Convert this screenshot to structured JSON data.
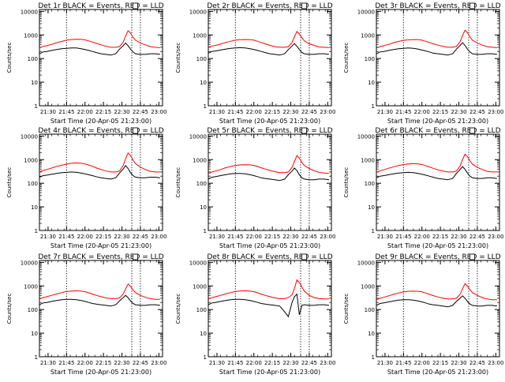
{
  "chart_data": [
    {
      "type": "line",
      "title": "Det 1r BLACK = Events, RED = LLD",
      "xlabel": "Start Time (20-Apr-05 21:23:00)",
      "ylabel": "Counts/sec",
      "x": [
        0,
        3,
        6,
        10,
        14,
        18,
        22,
        26,
        30,
        34,
        37,
        40,
        43,
        46,
        50,
        54,
        58,
        62,
        65,
        68,
        70,
        72,
        74,
        76,
        78,
        82,
        86,
        90,
        94,
        98
      ],
      "series": [
        {
          "values": [
            280,
            330,
            350,
            400,
            470,
            530,
            600,
            640,
            660,
            650,
            620,
            560,
            500,
            440,
            380,
            330,
            300,
            300,
            320,
            500,
            900,
            1500,
            1200,
            800,
            600,
            450,
            380,
            320,
            300,
            290
          ]
        },
        {
          "values": [
            160,
            190,
            200,
            220,
            240,
            260,
            270,
            280,
            280,
            260,
            240,
            220,
            200,
            180,
            160,
            150,
            140,
            160,
            250,
            350,
            450,
            350,
            250,
            190,
            160,
            150,
            150,
            160,
            160,
            150
          ]
        }
      ]
    },
    {
      "type": "line",
      "title": "Det 2r BLACK = Events, RED = LLD",
      "xlabel": "Start Time (20-Apr-05 21:23:00)",
      "ylabel": "Counts/sec",
      "x": [
        0,
        3,
        6,
        10,
        14,
        18,
        22,
        26,
        30,
        34,
        37,
        40,
        43,
        46,
        50,
        54,
        58,
        62,
        65,
        68,
        70,
        72,
        74,
        76,
        78,
        82,
        86,
        90,
        94,
        98
      ],
      "series": [
        {
          "values": [
            300,
            340,
            360,
            410,
            480,
            540,
            600,
            630,
            640,
            630,
            600,
            540,
            480,
            420,
            360,
            320,
            300,
            300,
            320,
            480,
            850,
            1400,
            1100,
            750,
            560,
            420,
            360,
            310,
            300,
            290
          ]
        },
        {
          "values": [
            170,
            200,
            210,
            230,
            250,
            270,
            280,
            290,
            280,
            260,
            240,
            220,
            200,
            180,
            160,
            150,
            140,
            160,
            240,
            340,
            430,
            330,
            240,
            180,
            160,
            150,
            150,
            160,
            160,
            150
          ]
        }
      ]
    },
    {
      "type": "line",
      "title": "Det 3r BLACK = Events, RED = LLD",
      "xlabel": "Start Time (20-Apr-05 21:23:00)",
      "ylabel": "Counts/sec",
      "x": [
        0,
        3,
        6,
        10,
        14,
        18,
        22,
        26,
        30,
        34,
        37,
        40,
        43,
        46,
        50,
        54,
        58,
        62,
        65,
        68,
        70,
        72,
        74,
        76,
        78,
        82,
        86,
        90,
        94,
        98
      ],
      "series": [
        {
          "values": [
            280,
            320,
            350,
            400,
            470,
            530,
            590,
            620,
            640,
            630,
            600,
            540,
            480,
            420,
            370,
            330,
            300,
            300,
            330,
            520,
            950,
            1600,
            1250,
            820,
            600,
            450,
            370,
            320,
            300,
            290
          ]
        },
        {
          "values": [
            160,
            190,
            200,
            220,
            240,
            260,
            270,
            280,
            270,
            250,
            230,
            210,
            190,
            170,
            160,
            150,
            140,
            160,
            250,
            360,
            470,
            360,
            250,
            190,
            160,
            150,
            150,
            160,
            160,
            150
          ]
        }
      ]
    },
    {
      "type": "line",
      "title": "Det 4r BLACK = Events, RED = LLD",
      "xlabel": "Start Time (20-Apr-05 21:23:00)",
      "ylabel": "Counts/sec",
      "x": [
        0,
        3,
        6,
        10,
        14,
        18,
        22,
        26,
        30,
        34,
        37,
        40,
        43,
        46,
        50,
        54,
        58,
        62,
        65,
        68,
        70,
        72,
        74,
        76,
        78,
        82,
        86,
        90,
        94,
        98
      ],
      "series": [
        {
          "values": [
            300,
            350,
            380,
            440,
            520,
            580,
            650,
            700,
            720,
            700,
            660,
            590,
            520,
            450,
            380,
            330,
            300,
            300,
            330,
            560,
            1100,
            1900,
            1500,
            950,
            680,
            480,
            380,
            320,
            300,
            300
          ]
        },
        {
          "values": [
            180,
            210,
            220,
            240,
            260,
            280,
            290,
            300,
            290,
            270,
            250,
            230,
            210,
            190,
            170,
            160,
            150,
            170,
            270,
            400,
            560,
            420,
            280,
            210,
            180,
            170,
            170,
            180,
            180,
            170
          ]
        }
      ]
    },
    {
      "type": "line",
      "title": "Det 5r BLACK = Events, RED = LLD",
      "xlabel": "Start Time (20-Apr-05 21:23:00)",
      "ylabel": "Counts/sec",
      "x": [
        0,
        3,
        6,
        10,
        14,
        18,
        22,
        26,
        30,
        34,
        37,
        40,
        43,
        46,
        50,
        54,
        58,
        62,
        65,
        68,
        70,
        72,
        74,
        76,
        78,
        82,
        86,
        90,
        94,
        98
      ],
      "series": [
        {
          "values": [
            260,
            300,
            330,
            380,
            450,
            510,
            570,
            600,
            610,
            600,
            570,
            510,
            450,
            400,
            350,
            310,
            280,
            280,
            300,
            470,
            850,
            1500,
            1150,
            760,
            560,
            420,
            340,
            290,
            270,
            260
          ]
        },
        {
          "values": [
            150,
            180,
            190,
            210,
            230,
            250,
            260,
            260,
            250,
            230,
            210,
            190,
            170,
            160,
            150,
            140,
            130,
            150,
            230,
            330,
            440,
            340,
            230,
            170,
            150,
            140,
            140,
            150,
            150,
            140
          ]
        }
      ]
    },
    {
      "type": "line",
      "title": "Det 6r BLACK = Events, RED = LLD",
      "xlabel": "Start Time (20-Apr-05 21:23:00)",
      "ylabel": "Counts/sec",
      "x": [
        0,
        3,
        6,
        10,
        14,
        18,
        22,
        26,
        30,
        34,
        37,
        40,
        43,
        46,
        50,
        54,
        58,
        62,
        65,
        68,
        70,
        72,
        74,
        76,
        78,
        82,
        86,
        90,
        94,
        98
      ],
      "series": [
        {
          "values": [
            290,
            340,
            370,
            430,
            500,
            560,
            620,
            660,
            680,
            660,
            620,
            560,
            490,
            430,
            370,
            330,
            300,
            300,
            330,
            540,
            1000,
            1700,
            1350,
            880,
            640,
            470,
            380,
            320,
            300,
            300
          ]
        },
        {
          "values": [
            170,
            200,
            210,
            230,
            250,
            270,
            280,
            290,
            280,
            260,
            240,
            220,
            200,
            180,
            160,
            150,
            140,
            160,
            260,
            380,
            510,
            390,
            270,
            200,
            170,
            160,
            160,
            170,
            170,
            160
          ]
        }
      ]
    },
    {
      "type": "line",
      "title": "Det 7r BLACK = Events, RED = LLD",
      "xlabel": "Start Time (20-Apr-05 21:23:00)",
      "ylabel": "Counts/sec",
      "x": [
        0,
        3,
        6,
        10,
        14,
        18,
        22,
        26,
        30,
        34,
        37,
        40,
        43,
        46,
        50,
        54,
        58,
        62,
        65,
        68,
        70,
        72,
        74,
        76,
        78,
        82,
        86,
        90,
        94,
        98
      ],
      "series": [
        {
          "values": [
            280,
            320,
            350,
            400,
            460,
            520,
            580,
            610,
            620,
            600,
            570,
            510,
            450,
            400,
            350,
            310,
            290,
            290,
            310,
            450,
            750,
            1200,
            950,
            680,
            520,
            400,
            330,
            290,
            270,
            270
          ]
        },
        {
          "values": [
            160,
            190,
            200,
            220,
            240,
            260,
            270,
            270,
            260,
            240,
            220,
            200,
            180,
            170,
            160,
            150,
            140,
            160,
            230,
            320,
            400,
            320,
            230,
            180,
            160,
            150,
            150,
            160,
            160,
            150
          ]
        }
      ]
    },
    {
      "type": "line",
      "title": "Det 8r BLACK = Events, RED = LLD",
      "xlabel": "Start Time (20-Apr-05 21:23:00)",
      "ylabel": "Counts/sec",
      "x": [
        0,
        3,
        6,
        10,
        14,
        18,
        22,
        26,
        30,
        34,
        37,
        40,
        43,
        46,
        50,
        54,
        58,
        62,
        65,
        68,
        70,
        72,
        74,
        76,
        78,
        82,
        86,
        90,
        94,
        98
      ],
      "series": [
        {
          "values": [
            280,
            320,
            350,
            400,
            460,
            520,
            580,
            610,
            620,
            600,
            570,
            510,
            450,
            400,
            350,
            310,
            290,
            290,
            320,
            420,
            800,
            1800,
            1400,
            900,
            600,
            400,
            320,
            290,
            280,
            280
          ]
        },
        {
          "values": [
            160,
            190,
            200,
            220,
            240,
            260,
            270,
            270,
            260,
            240,
            220,
            200,
            180,
            170,
            160,
            150,
            140,
            80,
            50,
            200,
            350,
            450,
            60,
            150,
            160,
            150,
            150,
            160,
            160,
            150
          ]
        }
      ]
    },
    {
      "type": "line",
      "title": "Det 9r BLACK = Events, RED = LLD",
      "xlabel": "Start Time (20-Apr-05 21:23:00)",
      "ylabel": "Counts/sec",
      "x": [
        0,
        3,
        6,
        10,
        14,
        18,
        22,
        26,
        30,
        34,
        37,
        40,
        43,
        46,
        50,
        54,
        58,
        62,
        65,
        68,
        70,
        72,
        74,
        76,
        78,
        82,
        86,
        90,
        94,
        98
      ],
      "series": [
        {
          "values": [
            260,
            300,
            330,
            380,
            440,
            500,
            560,
            590,
            600,
            590,
            560,
            500,
            440,
            390,
            340,
            300,
            280,
            280,
            300,
            440,
            760,
            1250,
            980,
            690,
            520,
            400,
            320,
            280,
            260,
            260
          ]
        },
        {
          "values": [
            150,
            180,
            190,
            210,
            230,
            250,
            260,
            260,
            250,
            230,
            210,
            190,
            170,
            160,
            150,
            140,
            130,
            150,
            220,
            300,
            380,
            300,
            220,
            170,
            150,
            140,
            140,
            150,
            150,
            140
          ]
        }
      ]
    }
  ],
  "axes": {
    "xticks": [
      {
        "v": 7,
        "label": "21:30"
      },
      {
        "v": 22,
        "label": "21:45"
      },
      {
        "v": 37,
        "label": "22:00"
      },
      {
        "v": 52,
        "label": "22:15"
      },
      {
        "v": 67,
        "label": "22:30"
      },
      {
        "v": 82,
        "label": "22:45"
      },
      {
        "v": 97,
        "label": "23:00"
      }
    ],
    "xlim": [
      0,
      100
    ],
    "yticks": [
      {
        "v": 1,
        "label": "1"
      },
      {
        "v": 10,
        "label": "10"
      },
      {
        "v": 100,
        "label": "100"
      },
      {
        "v": 1000,
        "label": "1000"
      },
      {
        "v": 10000,
        "label": "10000"
      }
    ],
    "ylim": [
      1,
      12000
    ],
    "yscale": "log",
    "vlines": [
      22,
      75,
      82
    ],
    "grid": false,
    "colors": {
      "red": "#ff0000",
      "black": "#000000"
    }
  }
}
